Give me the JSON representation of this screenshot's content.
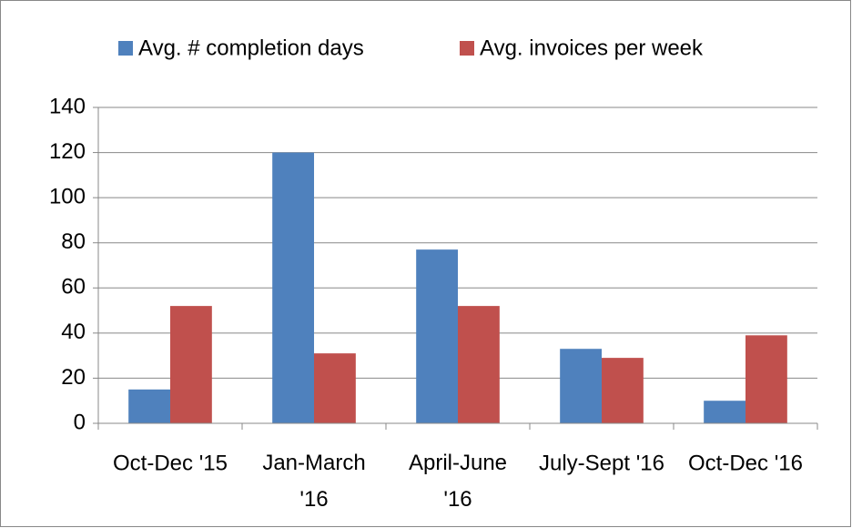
{
  "chart_data": {
    "type": "bar",
    "categories": [
      "Oct-Dec '15",
      "Jan-March '16",
      "April-June '16",
      "July-Sept '16",
      "Oct-Dec '16"
    ],
    "series": [
      {
        "name": "Avg. # completion days",
        "color": "#4f81bd",
        "values": [
          15,
          120,
          77,
          33,
          10
        ]
      },
      {
        "name": "Avg. invoices per week",
        "color": "#c0504d",
        "values": [
          52,
          31,
          52,
          29,
          39
        ]
      }
    ],
    "ylim": [
      0,
      140
    ],
    "yticks": [
      0,
      20,
      40,
      60,
      80,
      100,
      120,
      140
    ],
    "grid": true,
    "legend": "top"
  }
}
